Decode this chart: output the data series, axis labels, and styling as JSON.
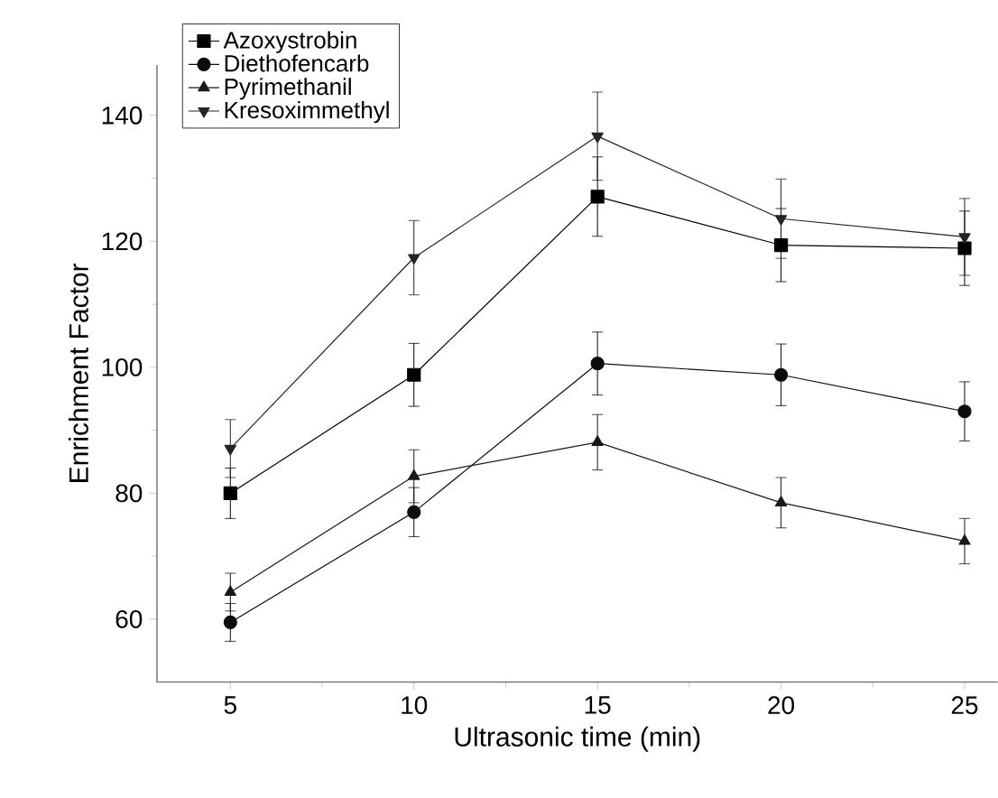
{
  "chart_data": {
    "type": "line",
    "xlabel": "Ultrasonic time (min)",
    "ylabel": "Enrichment Factor",
    "x": [
      5,
      10,
      15,
      20,
      25
    ],
    "series": [
      {
        "name": "Azoxystrobin",
        "color": "#000000",
        "marker": "square",
        "values": [
          80,
          98.8,
          127.1,
          119.4,
          118.9
        ],
        "errors": [
          4,
          5,
          6.3,
          5.8,
          5.9
        ]
      },
      {
        "name": "Diethofencarb",
        "color": "#0c0c0c",
        "marker": "circle",
        "values": [
          59.5,
          77,
          100.6,
          98.8,
          93
        ],
        "errors": [
          3,
          3.9,
          5,
          4.9,
          4.7
        ]
      },
      {
        "name": "Pyrimethanil",
        "color": "#181818",
        "marker": "triangle",
        "values": [
          64.3,
          82.7,
          88.1,
          78.5,
          72.4
        ],
        "errors": [
          3,
          4.2,
          4.4,
          4,
          3.6
        ]
      },
      {
        "name": "Kresoximmethyl",
        "color": "#242424",
        "marker": "triangle-down",
        "values": [
          87.1,
          117.4,
          136.7,
          123.6,
          120.7
        ],
        "errors": [
          4.6,
          5.9,
          7,
          6.3,
          6.1
        ]
      }
    ],
    "xlim": [
      3,
      25.9
    ],
    "ylim": [
      50,
      148
    ],
    "xticks": [
      5,
      10,
      15,
      20,
      25
    ],
    "yticks": [
      60,
      80,
      100,
      120,
      140
    ],
    "legend": "top left",
    "line_style": "solid"
  }
}
